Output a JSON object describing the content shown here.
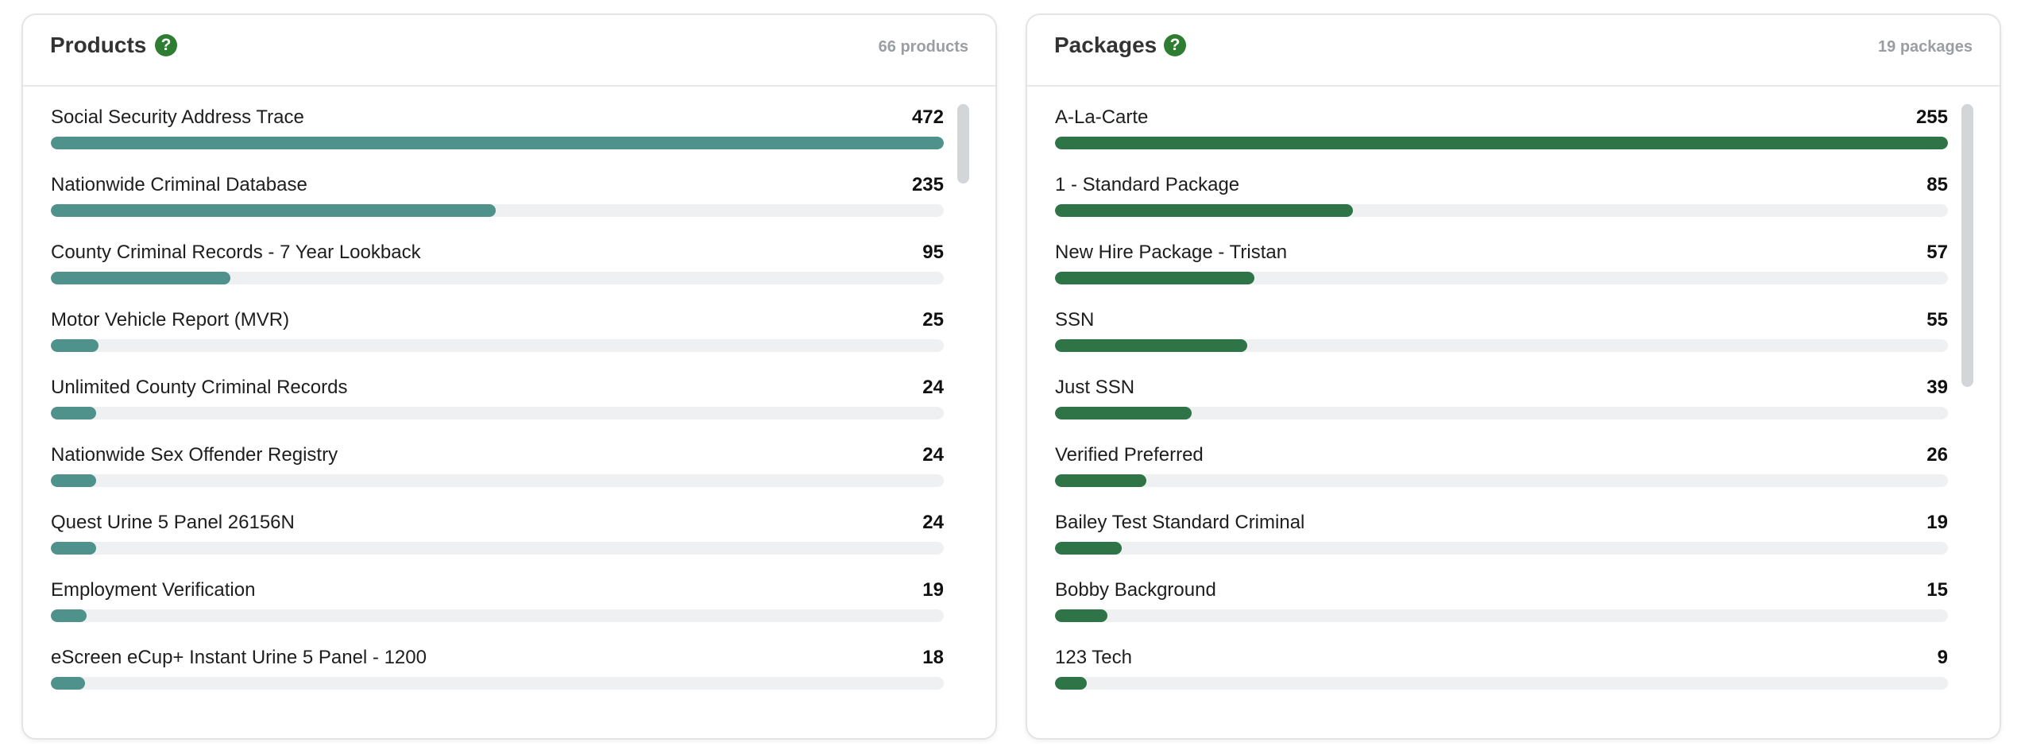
{
  "colors": {
    "products_bar": "#4f918b",
    "packages_bar": "#2f7446",
    "help_icon": "#2f7d32"
  },
  "products": {
    "title": "Products",
    "help_icon": "question-circle-icon",
    "count_text": "66 products",
    "items": [
      {
        "label": "Social Security Address Trace",
        "value": 472
      },
      {
        "label": "Nationwide Criminal Database",
        "value": 235
      },
      {
        "label": "County Criminal Records - 7 Year Lookback",
        "value": 95
      },
      {
        "label": "Motor Vehicle Report (MVR)",
        "value": 25
      },
      {
        "label": "Unlimited County Criminal Records",
        "value": 24
      },
      {
        "label": "Nationwide Sex Offender Registry",
        "value": 24
      },
      {
        "label": "Quest Urine 5 Panel 26156N",
        "value": 24
      },
      {
        "label": "Employment Verification",
        "value": 19
      },
      {
        "label": "eScreen eCup+ Instant Urine 5 Panel - 1200",
        "value": 18
      }
    ]
  },
  "packages": {
    "title": "Packages",
    "help_icon": "question-circle-icon",
    "count_text": "19 packages",
    "items": [
      {
        "label": "A-La-Carte",
        "value": 255
      },
      {
        "label": "1 - Standard Package",
        "value": 85
      },
      {
        "label": "New Hire Package - Tristan",
        "value": 57
      },
      {
        "label": "SSN",
        "value": 55
      },
      {
        "label": "Just SSN",
        "value": 39
      },
      {
        "label": "Verified Preferred",
        "value": 26
      },
      {
        "label": "Bailey Test Standard Criminal",
        "value": 19
      },
      {
        "label": "Bobby Background",
        "value": 15
      },
      {
        "label": "123 Tech",
        "value": 9
      }
    ]
  }
}
